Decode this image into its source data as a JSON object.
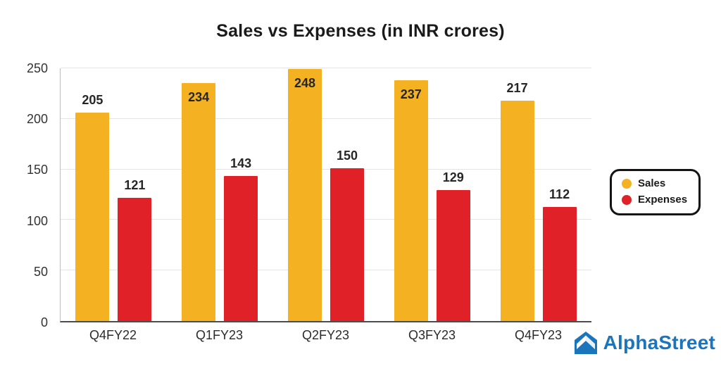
{
  "title": "Sales vs Expenses (in INR crores)",
  "chart_data": {
    "type": "bar",
    "categories": [
      "Q4FY22",
      "Q1FY23",
      "Q2FY23",
      "Q3FY23",
      "Q4FY23"
    ],
    "series": [
      {
        "name": "Sales",
        "color": "#F4B223",
        "values": [
          205,
          234,
          248,
          237,
          217
        ]
      },
      {
        "name": "Expenses",
        "color": "#E02128",
        "values": [
          121,
          143,
          150,
          129,
          112
        ]
      }
    ],
    "title": "Sales vs Expenses (in INR crores)",
    "xlabel": "",
    "ylabel": "",
    "ylim": [
      0,
      250
    ],
    "yticks": [
      0,
      50,
      100,
      150,
      200,
      250
    ],
    "grid": true,
    "legend_position": "right",
    "value_labels": true
  },
  "branding": {
    "name": "AlphaStreet",
    "color": "#1B75BC"
  }
}
